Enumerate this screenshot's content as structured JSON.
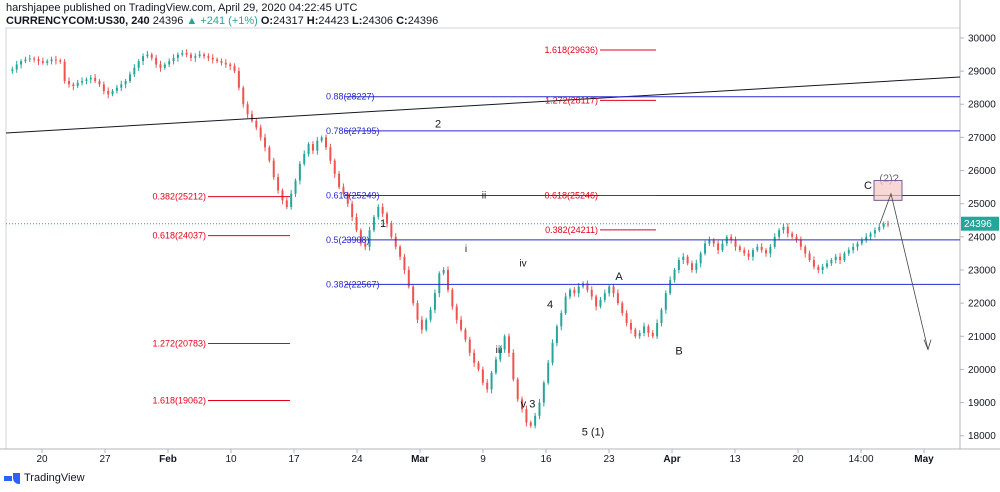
{
  "header": {
    "line1": "harshjapee published on TradingView.com, April 29, 2020 04:22:45 UTC",
    "symbol": "CURRENCYCOM:US30, 240",
    "last": "24396",
    "change_icon": "up-triangle-icon",
    "change": "+241 (+1%)",
    "o_label": "O:",
    "o": "24317",
    "h_label": "H:",
    "h": "24423",
    "l_label": "L:",
    "l": "24306",
    "c_label": "C:",
    "c": "24396"
  },
  "footer": {
    "brand": "TradingView",
    "logo_icon": "tradingview-logo-icon"
  },
  "colors": {
    "up": "#26a69a",
    "down": "#ef5350",
    "fib_blue": "#2a2ad0",
    "fib_red": "#e3001b",
    "price_tag": "#26a69a"
  },
  "chart_data": {
    "type": "candlestick",
    "title": "",
    "ylim": [
      17600,
      30300
    ],
    "y_ticks": [
      18000,
      19000,
      20000,
      21000,
      22000,
      23000,
      24000,
      25000,
      26000,
      27000,
      28000,
      29000,
      30000
    ],
    "x_ticks": [
      "20",
      "27",
      "Feb",
      "10",
      "17",
      "24",
      "Mar",
      "9",
      "16",
      "23",
      "Apr",
      "13",
      "20",
      "14:00",
      "May"
    ],
    "last_price": 24396,
    "price_points": [
      [
        29000,
        29050,
        29200,
        29300,
        29350,
        29380,
        29360,
        29300,
        29250,
        29300,
        29350,
        29320,
        29280
      ],
      [
        28700,
        28600,
        28550,
        28650,
        28700,
        28750,
        28800,
        28700,
        28600,
        28400,
        28300,
        28400,
        28500,
        28600,
        28700,
        28900,
        29100,
        29300,
        29450,
        29500,
        29400,
        29200,
        29100,
        29200,
        29300,
        29400,
        29500,
        29550,
        29500,
        29400,
        29450,
        29500,
        29450,
        29400,
        29350,
        29300,
        29250,
        29200,
        29150,
        29000
      ],
      [
        28500,
        28000,
        27700,
        27500,
        27300,
        27000,
        26700,
        26300,
        25800,
        25400,
        25100,
        24900,
        25300,
        25700,
        26200,
        26500,
        26800,
        26600,
        26900,
        27000,
        26700,
        26300,
        25900,
        25500,
        25300
      ],
      [
        25000,
        24600,
        24200,
        23800,
        23700,
        24200,
        24600,
        24900,
        24700,
        24400,
        24000,
        23700,
        23400,
        23000,
        22500,
        22000,
        21500,
        21200,
        21500,
        21800,
        22300,
        22900,
        23000,
        22400,
        21900,
        21500,
        21200,
        20900,
        20500,
        20200,
        20000,
        19600,
        19400,
        19900,
        20300,
        20600,
        21000,
        20500,
        19700,
        19100,
        18800,
        18400,
        18300,
        18600,
        19000,
        19600,
        20200,
        20800,
        21300,
        21700,
        22200,
        22400,
        22300,
        22500
      ],
      [
        22600,
        22400,
        22200,
        21900,
        22100,
        22300,
        22500,
        22300,
        22000,
        21700,
        21400,
        21200,
        21000,
        21100,
        21300,
        21100,
        21000,
        21400,
        21800,
        22300,
        22700,
        23000,
        23300,
        23400,
        23200,
        23000,
        23200,
        23500,
        23800,
        23900,
        23800,
        23600,
        23800,
        24000,
        23900,
        23700,
        23600,
        23500,
        23400,
        23600,
        23700,
        23600,
        23500,
        23700,
        24000,
        24200,
        24300,
        24100,
        24000,
        23900,
        23700,
        23500,
        23300,
        23100,
        23000,
        23100,
        23200,
        23300,
        23400,
        23300,
        23500,
        23600,
        23700,
        23800,
        23900,
        24000,
        24100,
        24200,
        24300,
        24400,
        24396
      ]
    ],
    "fib_levels_blue": [
      {
        "label": "0.88(28227)",
        "price": 28227
      },
      {
        "label": "0.786(27195)",
        "price": 27195
      },
      {
        "label": "0.618(25249)",
        "price": 25249
      },
      {
        "label": "0.5(23908)",
        "price": 23908
      },
      {
        "label": "0.382(22567)",
        "price": 22567
      }
    ],
    "fib_levels_red_center": [
      {
        "label": "1.618(29636)",
        "price": 29636
      },
      {
        "label": "1.272(28117)",
        "price": 28117
      },
      {
        "label": "0.618(25246)",
        "price": 25246
      },
      {
        "label": "0.382(24211)",
        "price": 24211
      }
    ],
    "fib_levels_red_left": [
      {
        "label": "0.382(25212)",
        "price": 25212
      },
      {
        "label": "0.618(24037)",
        "price": 24037
      },
      {
        "label": "1.272(20783)",
        "price": 20783
      },
      {
        "label": "1.618(19062)",
        "price": 19062
      }
    ],
    "wave_labels": [
      {
        "text": "1",
        "price": 24300
      },
      {
        "text": "2",
        "price": 27300
      },
      {
        "text": "ii",
        "price": 25150
      },
      {
        "text": "i",
        "price": 23550
      },
      {
        "text": "iv",
        "price": 23100
      },
      {
        "text": "4",
        "price": 21850
      },
      {
        "text": "iii",
        "price": 20500
      },
      {
        "text": "v 3",
        "price": 18850
      },
      {
        "text": "5 (1)",
        "price": 18000
      },
      {
        "text": "A",
        "price": 22700
      },
      {
        "text": "B",
        "price": 20450
      },
      {
        "text": "C",
        "price": 25450
      },
      {
        "text": "(2)?",
        "price": 25650
      }
    ]
  }
}
